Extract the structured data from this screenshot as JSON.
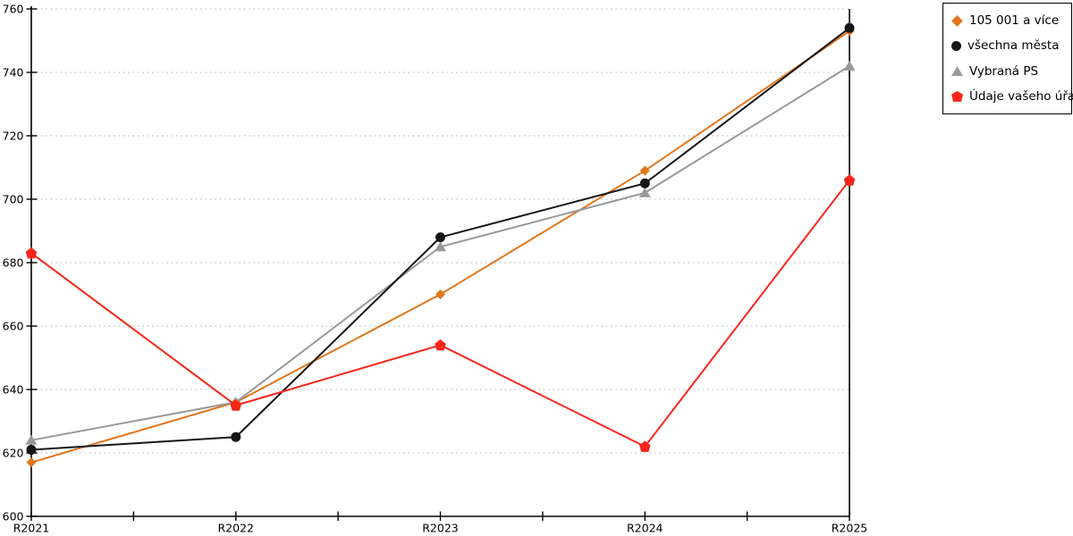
{
  "chart_data": {
    "type": "line",
    "categories": [
      "R2021",
      "R2022",
      "R2023",
      "R2024",
      "R2025"
    ],
    "series": [
      {
        "key": "105-001-a-vice",
        "name": "105 001 a více",
        "color": "#e2761b",
        "marker": "diamond",
        "z": 1,
        "values": [
          617,
          636,
          670,
          709,
          753
        ]
      },
      {
        "key": "vsechna-mesta",
        "name": "všechna města",
        "color": "#161616",
        "marker": "circle",
        "z": 3,
        "values": [
          621,
          625,
          688,
          705,
          754
        ]
      },
      {
        "key": "vybrana-ps",
        "name": "Vybraná PS",
        "color": "#999999",
        "marker": "triangle",
        "z": 2,
        "values": [
          624,
          636,
          685,
          702,
          742
        ]
      },
      {
        "key": "udaje-vaseho-uradu",
        "name": "Údaje vašeho úřadu",
        "color": "#f7261a",
        "marker": "pentagon",
        "z": 4,
        "values": [
          683,
          635,
          654,
          622,
          706
        ]
      }
    ],
    "ylim": [
      600,
      760
    ],
    "ytick_step": 20,
    "yticks": [
      600,
      620,
      640,
      660,
      680,
      700,
      720,
      740,
      760
    ],
    "grid": "horizontal-dotted",
    "legend_position": "top-right"
  },
  "colors": {
    "axis": "#000000",
    "gridline": "#bdbdbd",
    "background": "#ffffff"
  }
}
